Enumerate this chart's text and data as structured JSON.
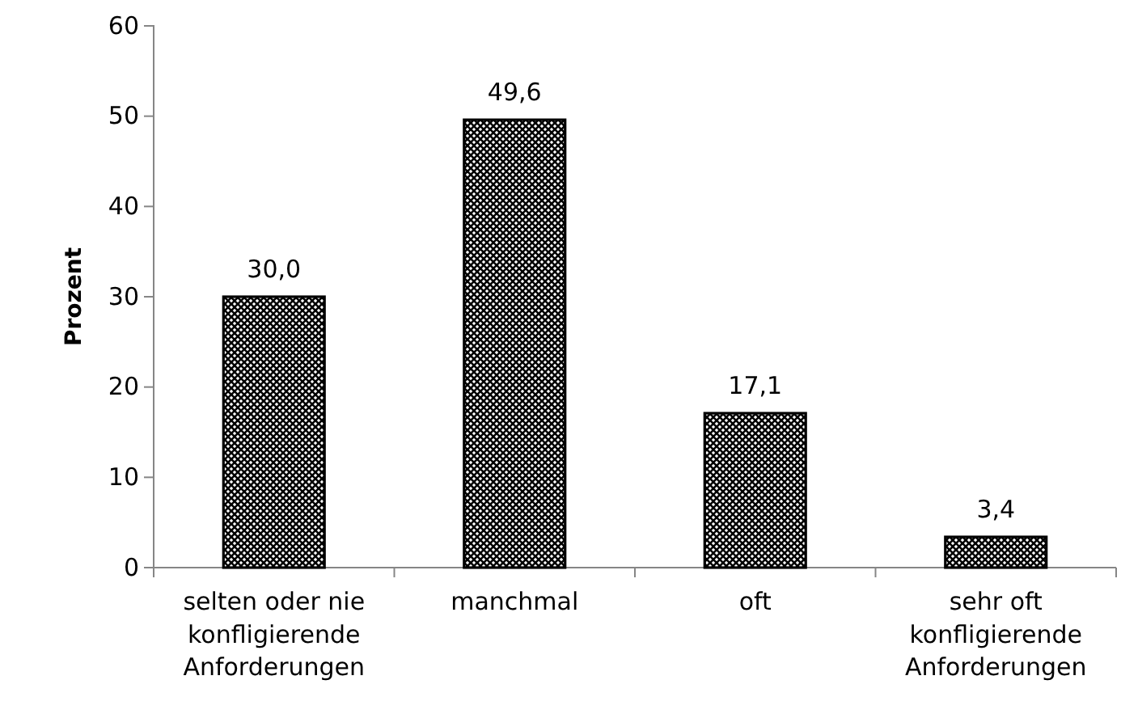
{
  "chart_data": {
    "type": "bar",
    "ylabel": "Prozent",
    "categories": [
      "selten oder nie konfligierende Anforderungen",
      "manchmal",
      "oft",
      "sehr oft konfligierende Anforderungen"
    ],
    "values": [
      30.0,
      49.6,
      17.1,
      3.4
    ],
    "value_labels": [
      "30,0",
      "49,6",
      "17,1",
      "3,4"
    ],
    "color": "#000000",
    "ylim": [
      0,
      60
    ],
    "yticks": [
      0,
      10,
      20,
      30,
      40,
      50,
      60
    ],
    "grid": false
  }
}
